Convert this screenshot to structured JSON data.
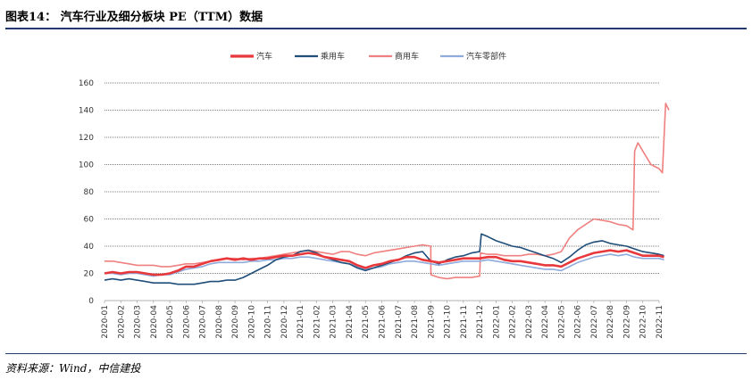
{
  "header": {
    "title": "图表14：  汽车行业及细分板块 PE（TTM）数据"
  },
  "footer": {
    "source": "资料来源：Wind，中信建投"
  },
  "chart_data": {
    "type": "line",
    "title": "",
    "xlabel": "",
    "ylabel": "",
    "ylim": [
      0,
      160
    ],
    "yticks": [
      0,
      20,
      40,
      60,
      80,
      100,
      120,
      140,
      160
    ],
    "grid": "horizontal",
    "legend_position": "top-center",
    "x_months": [
      "2020-01",
      "2020-02",
      "2020-03",
      "2020-04",
      "2020-05",
      "2020-06",
      "2020-07",
      "2020-08",
      "2020-09",
      "2020-10",
      "2020-11",
      "2020-12",
      "2021-01",
      "2021-02",
      "2021-03",
      "2021-04",
      "2021-05",
      "2021-06",
      "2021-07",
      "2021-08",
      "2021-09",
      "2021-10",
      "2021-11",
      "2021-12",
      "2022-01",
      "2022-02",
      "2022-03",
      "2022-04",
      "2022-05",
      "2022-06",
      "2022-07",
      "2022-08",
      "2022-09",
      "2022-10",
      "2022-11"
    ],
    "series": [
      {
        "name": "汽车",
        "color": "#e8383b",
        "width": 2.6,
        "points": [
          [
            0,
            20
          ],
          [
            0.5,
            21
          ],
          [
            1,
            20
          ],
          [
            1.5,
            21
          ],
          [
            2,
            21
          ],
          [
            2.5,
            20
          ],
          [
            3,
            19
          ],
          [
            3.5,
            19
          ],
          [
            4,
            20
          ],
          [
            4.5,
            22
          ],
          [
            5,
            25
          ],
          [
            5.5,
            25
          ],
          [
            6,
            27
          ],
          [
            6.5,
            29
          ],
          [
            7,
            30
          ],
          [
            7.5,
            31
          ],
          [
            8,
            30
          ],
          [
            8.5,
            31
          ],
          [
            9,
            30
          ],
          [
            9.5,
            31
          ],
          [
            10,
            31
          ],
          [
            10.5,
            32
          ],
          [
            11,
            33
          ],
          [
            11.5,
            33
          ],
          [
            12,
            34
          ],
          [
            12.5,
            35
          ],
          [
            13,
            34
          ],
          [
            13.5,
            32
          ],
          [
            14,
            31
          ],
          [
            14.5,
            30
          ],
          [
            15,
            29
          ],
          [
            15.5,
            26
          ],
          [
            16,
            24
          ],
          [
            16.5,
            26
          ],
          [
            17,
            27
          ],
          [
            17.5,
            29
          ],
          [
            18,
            30
          ],
          [
            18.5,
            32
          ],
          [
            19,
            32
          ],
          [
            19.5,
            30
          ],
          [
            20,
            29
          ],
          [
            20.5,
            28
          ],
          [
            21,
            29
          ],
          [
            21.5,
            30
          ],
          [
            22,
            31
          ],
          [
            22.5,
            31
          ],
          [
            23,
            31
          ],
          [
            23.5,
            32
          ],
          [
            24,
            32
          ],
          [
            24.5,
            30
          ],
          [
            25,
            29
          ],
          [
            25.5,
            29
          ],
          [
            26,
            28
          ],
          [
            26.5,
            27
          ],
          [
            27,
            26
          ],
          [
            27.5,
            26
          ],
          [
            28,
            25
          ],
          [
            28.5,
            28
          ],
          [
            29,
            31
          ],
          [
            29.5,
            33
          ],
          [
            30,
            35
          ],
          [
            30.5,
            36
          ],
          [
            31,
            37
          ],
          [
            31.5,
            36
          ],
          [
            32,
            37
          ],
          [
            32.5,
            35
          ],
          [
            33,
            33
          ],
          [
            33.5,
            33
          ],
          [
            34,
            33
          ],
          [
            34.3,
            32
          ]
        ]
      },
      {
        "name": "乘用车",
        "color": "#1f4e79",
        "width": 1.6,
        "points": [
          [
            0,
            15
          ],
          [
            0.5,
            16
          ],
          [
            1,
            15
          ],
          [
            1.5,
            16
          ],
          [
            2,
            15
          ],
          [
            2.5,
            14
          ],
          [
            3,
            13
          ],
          [
            3.5,
            13
          ],
          [
            4,
            13
          ],
          [
            4.5,
            12
          ],
          [
            5,
            12
          ],
          [
            5.5,
            12
          ],
          [
            6,
            13
          ],
          [
            6.5,
            14
          ],
          [
            7,
            14
          ],
          [
            7.5,
            15
          ],
          [
            8,
            15
          ],
          [
            8.5,
            17
          ],
          [
            9,
            20
          ],
          [
            9.5,
            23
          ],
          [
            10,
            26
          ],
          [
            10.5,
            30
          ],
          [
            11,
            32
          ],
          [
            11.5,
            33
          ],
          [
            12,
            36
          ],
          [
            12.5,
            37
          ],
          [
            13,
            35
          ],
          [
            13.5,
            32
          ],
          [
            14,
            30
          ],
          [
            14.5,
            28
          ],
          [
            15,
            27
          ],
          [
            15.5,
            24
          ],
          [
            16,
            22
          ],
          [
            16.5,
            24
          ],
          [
            17,
            26
          ],
          [
            17.5,
            28
          ],
          [
            18,
            30
          ],
          [
            18.5,
            33
          ],
          [
            19,
            35
          ],
          [
            19.5,
            36
          ],
          [
            20,
            29
          ],
          [
            20.5,
            27
          ],
          [
            21,
            30
          ],
          [
            21.5,
            32
          ],
          [
            22,
            33
          ],
          [
            22.5,
            35
          ],
          [
            23,
            36
          ],
          [
            23.1,
            49
          ],
          [
            23.5,
            47
          ],
          [
            24,
            44
          ],
          [
            24.5,
            42
          ],
          [
            25,
            40
          ],
          [
            25.5,
            39
          ],
          [
            26,
            37
          ],
          [
            26.5,
            35
          ],
          [
            27,
            33
          ],
          [
            27.5,
            31
          ],
          [
            28,
            28
          ],
          [
            28.5,
            32
          ],
          [
            29,
            37
          ],
          [
            29.5,
            41
          ],
          [
            30,
            43
          ],
          [
            30.5,
            44
          ],
          [
            31,
            42
          ],
          [
            31.5,
            41
          ],
          [
            32,
            40
          ],
          [
            32.5,
            38
          ],
          [
            33,
            36
          ],
          [
            33.5,
            35
          ],
          [
            34,
            34
          ],
          [
            34.3,
            33
          ]
        ]
      },
      {
        "name": "商用车",
        "color": "#f08080",
        "width": 1.6,
        "points": [
          [
            0,
            29
          ],
          [
            0.5,
            29
          ],
          [
            1,
            28
          ],
          [
            1.5,
            27
          ],
          [
            2,
            26
          ],
          [
            2.5,
            26
          ],
          [
            3,
            26
          ],
          [
            3.5,
            25
          ],
          [
            4,
            25
          ],
          [
            4.5,
            26
          ],
          [
            5,
            27
          ],
          [
            5.5,
            27
          ],
          [
            6,
            28
          ],
          [
            6.5,
            29
          ],
          [
            7,
            30
          ],
          [
            7.5,
            31
          ],
          [
            8,
            31
          ],
          [
            8.5,
            30
          ],
          [
            9,
            31
          ],
          [
            9.5,
            31
          ],
          [
            10,
            32
          ],
          [
            10.5,
            33
          ],
          [
            11,
            34
          ],
          [
            11.5,
            35
          ],
          [
            12,
            36
          ],
          [
            12.5,
            37
          ],
          [
            13,
            36
          ],
          [
            13.5,
            35
          ],
          [
            14,
            34
          ],
          [
            14.5,
            36
          ],
          [
            15,
            36
          ],
          [
            15.5,
            34
          ],
          [
            16,
            33
          ],
          [
            16.5,
            35
          ],
          [
            17,
            36
          ],
          [
            17.5,
            37
          ],
          [
            18,
            38
          ],
          [
            18.5,
            39
          ],
          [
            19,
            40
          ],
          [
            19.5,
            41
          ],
          [
            20,
            40
          ],
          [
            20.01,
            19
          ],
          [
            20.5,
            17
          ],
          [
            21,
            16
          ],
          [
            21.5,
            17
          ],
          [
            22,
            17
          ],
          [
            22.5,
            17
          ],
          [
            23,
            18
          ],
          [
            23.05,
            35
          ],
          [
            23.5,
            34
          ],
          [
            24,
            34
          ],
          [
            24.5,
            33
          ],
          [
            25,
            33
          ],
          [
            25.5,
            33
          ],
          [
            26,
            34
          ],
          [
            26.5,
            34
          ],
          [
            27,
            33
          ],
          [
            27.5,
            34
          ],
          [
            28,
            36
          ],
          [
            28.5,
            46
          ],
          [
            29,
            52
          ],
          [
            29.5,
            56
          ],
          [
            30,
            60
          ],
          [
            30.5,
            59
          ],
          [
            31,
            58
          ],
          [
            31.5,
            56
          ],
          [
            32,
            55
          ],
          [
            32.4,
            52
          ],
          [
            32.5,
            110
          ],
          [
            32.7,
            116
          ],
          [
            33,
            110
          ],
          [
            33.5,
            100
          ],
          [
            34,
            97
          ],
          [
            34.2,
            94
          ],
          [
            34.4,
            145
          ],
          [
            34.6,
            140
          ]
        ]
      },
      {
        "name": "汽车零部件",
        "color": "#8faadc",
        "width": 1.6,
        "points": [
          [
            0,
            20
          ],
          [
            0.5,
            20
          ],
          [
            1,
            19
          ],
          [
            1.5,
            20
          ],
          [
            2,
            20
          ],
          [
            2.5,
            19
          ],
          [
            3,
            18
          ],
          [
            3.5,
            19
          ],
          [
            4,
            19
          ],
          [
            4.5,
            21
          ],
          [
            5,
            23
          ],
          [
            5.5,
            24
          ],
          [
            6,
            25
          ],
          [
            6.5,
            27
          ],
          [
            7,
            28
          ],
          [
            7.5,
            28
          ],
          [
            8,
            28
          ],
          [
            8.5,
            28
          ],
          [
            9,
            29
          ],
          [
            9.5,
            29
          ],
          [
            10,
            30
          ],
          [
            10.5,
            30
          ],
          [
            11,
            31
          ],
          [
            11.5,
            31
          ],
          [
            12,
            32
          ],
          [
            12.5,
            32
          ],
          [
            13,
            31
          ],
          [
            13.5,
            30
          ],
          [
            14,
            29
          ],
          [
            14.5,
            28
          ],
          [
            15,
            27
          ],
          [
            15.5,
            25
          ],
          [
            16,
            23
          ],
          [
            16.5,
            24
          ],
          [
            17,
            25
          ],
          [
            17.5,
            27
          ],
          [
            18,
            28
          ],
          [
            18.5,
            29
          ],
          [
            19,
            29
          ],
          [
            19.5,
            28
          ],
          [
            20,
            27
          ],
          [
            20.5,
            26
          ],
          [
            21,
            27
          ],
          [
            21.5,
            28
          ],
          [
            22,
            29
          ],
          [
            22.5,
            29
          ],
          [
            23,
            29
          ],
          [
            23.5,
            30
          ],
          [
            24,
            29
          ],
          [
            24.5,
            28
          ],
          [
            25,
            27
          ],
          [
            25.5,
            26
          ],
          [
            26,
            25
          ],
          [
            26.5,
            24
          ],
          [
            27,
            23
          ],
          [
            27.5,
            23
          ],
          [
            28,
            22
          ],
          [
            28.5,
            25
          ],
          [
            29,
            28
          ],
          [
            29.5,
            30
          ],
          [
            30,
            32
          ],
          [
            30.5,
            33
          ],
          [
            31,
            34
          ],
          [
            31.5,
            33
          ],
          [
            32,
            34
          ],
          [
            32.5,
            32
          ],
          [
            33,
            31
          ],
          [
            33.5,
            31
          ],
          [
            34,
            31
          ],
          [
            34.3,
            30
          ]
        ]
      }
    ]
  }
}
